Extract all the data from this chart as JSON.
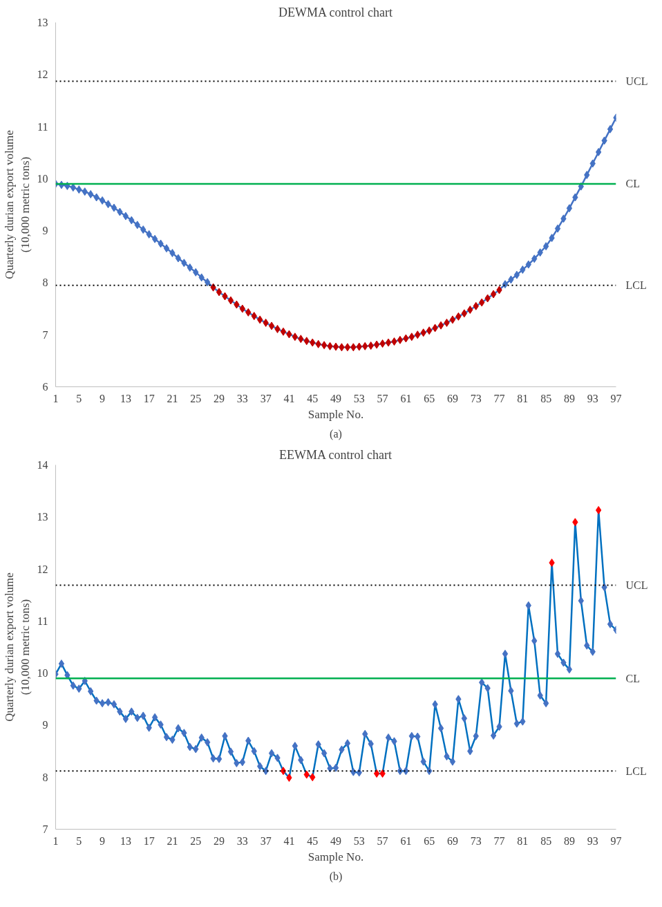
{
  "chart_data": [
    {
      "type": "line",
      "title": "DEWMA control chart",
      "xlabel": "Sample No.",
      "ylabel": "Quarterly durian export volume\n(10,000 metric tons)",
      "x": [
        1,
        2,
        3,
        4,
        5,
        6,
        7,
        8,
        9,
        10,
        11,
        12,
        13,
        14,
        15,
        16,
        17,
        18,
        19,
        20,
        21,
        22,
        23,
        24,
        25,
        26,
        27,
        28,
        29,
        30,
        31,
        32,
        33,
        34,
        35,
        36,
        37,
        38,
        39,
        40,
        41,
        42,
        43,
        44,
        45,
        46,
        47,
        48,
        49,
        50,
        51,
        52,
        53,
        54,
        55,
        56,
        57,
        58,
        59,
        60,
        61,
        62,
        63,
        64,
        65,
        66,
        67,
        68,
        69,
        70,
        71,
        72,
        73,
        74,
        75,
        76,
        77,
        78,
        79,
        80,
        81,
        82,
        83,
        84,
        85,
        86,
        87,
        88,
        89,
        90,
        91,
        92,
        93,
        94,
        95,
        96,
        97
      ],
      "series": [
        {
          "color": "#4472c4",
          "values": [
            9.9,
            9.88,
            9.86,
            9.83,
            9.79,
            9.75,
            9.7,
            9.64,
            9.58,
            9.51,
            9.44,
            9.36,
            9.28,
            9.2,
            9.11,
            9.02,
            8.93,
            8.84,
            8.75,
            8.66,
            8.57,
            8.47,
            8.38,
            8.29,
            8.2,
            8.1,
            8.01,
            7.91,
            7.82,
            7.74,
            7.66,
            7.58,
            7.5,
            7.43,
            7.36,
            7.29,
            7.23,
            7.17,
            7.11,
            7.06,
            7.01,
            6.96,
            6.92,
            6.88,
            6.85,
            6.82,
            6.8,
            6.78,
            6.77,
            6.76,
            6.76,
            6.76,
            6.77,
            6.78,
            6.79,
            6.81,
            6.83,
            6.85,
            6.87,
            6.9,
            6.93,
            6.96,
            7.0,
            7.04,
            7.08,
            7.13,
            7.18,
            7.23,
            7.29,
            7.35,
            7.41,
            7.48,
            7.55,
            7.62,
            7.7,
            7.78,
            7.86,
            7.97,
            8.06,
            8.15,
            8.25,
            8.35,
            8.46,
            8.58,
            8.7,
            8.86,
            9.04,
            9.23,
            9.43,
            9.64,
            9.85,
            10.07,
            10.29,
            10.51,
            10.73,
            10.95,
            11.17
          ],
          "colors": [
            "#4472c4",
            "#4472c4",
            "#4472c4",
            "#4472c4",
            "#4472c4",
            "#4472c4",
            "#4472c4",
            "#4472c4",
            "#4472c4",
            "#4472c4",
            "#4472c4",
            "#4472c4",
            "#4472c4",
            "#4472c4",
            "#4472c4",
            "#4472c4",
            "#4472c4",
            "#4472c4",
            "#4472c4",
            "#4472c4",
            "#4472c4",
            "#4472c4",
            "#4472c4",
            "#4472c4",
            "#4472c4",
            "#4472c4",
            "#4472c4",
            "#c00000",
            "#c00000",
            "#c00000",
            "#c00000",
            "#c00000",
            "#c00000",
            "#c00000",
            "#c00000",
            "#c00000",
            "#c00000",
            "#c00000",
            "#c00000",
            "#c00000",
            "#c00000",
            "#c00000",
            "#c00000",
            "#c00000",
            "#c00000",
            "#c00000",
            "#c00000",
            "#c00000",
            "#c00000",
            "#c00000",
            "#c00000",
            "#c00000",
            "#c00000",
            "#c00000",
            "#c00000",
            "#c00000",
            "#c00000",
            "#c00000",
            "#c00000",
            "#c00000",
            "#c00000",
            "#c00000",
            "#c00000",
            "#c00000",
            "#c00000",
            "#c00000",
            "#c00000",
            "#c00000",
            "#c00000",
            "#c00000",
            "#c00000",
            "#c00000",
            "#c00000",
            "#c00000",
            "#c00000",
            "#c00000",
            "#c00000",
            "#4472c4",
            "#4472c4",
            "#4472c4",
            "#4472c4",
            "#4472c4",
            "#4472c4",
            "#4472c4",
            "#4472c4",
            "#4472c4",
            "#4472c4",
            "#4472c4",
            "#4472c4",
            "#4472c4",
            "#4472c4",
            "#4472c4",
            "#4472c4",
            "#4472c4",
            "#4472c4",
            "#4472c4",
            "#4472c4"
          ]
        }
      ],
      "xlim": [
        1,
        97
      ],
      "xticks": [
        1,
        5,
        9,
        13,
        17,
        21,
        25,
        29,
        33,
        37,
        41,
        45,
        49,
        53,
        57,
        61,
        65,
        69,
        73,
        77,
        81,
        85,
        89,
        93,
        97
      ],
      "ylim": [
        6,
        13
      ],
      "yticks": [
        6,
        7,
        8,
        9,
        10,
        11,
        12,
        13
      ],
      "ref_lines": [
        {
          "axis": "y",
          "value": 11.87,
          "label": "UCL",
          "color": "#000000",
          "line_style": "dotted"
        },
        {
          "axis": "y",
          "value": 9.9,
          "label": "CL",
          "color": "#00b050",
          "line_style": "solid"
        },
        {
          "axis": "y",
          "value": 7.95,
          "label": "LCL",
          "color": "#000000",
          "line_style": "dotted"
        }
      ],
      "marker": "diamond",
      "grid": false,
      "annotations": [
        "(a)"
      ]
    },
    {
      "type": "line",
      "title": "EEWMA control chart",
      "xlabel": "Sample No.",
      "ylabel": "Quarterly durian export volume\n(10,000 metric tons)",
      "x": [
        1,
        2,
        3,
        4,
        5,
        6,
        7,
        8,
        9,
        10,
        11,
        12,
        13,
        14,
        15,
        16,
        17,
        18,
        19,
        20,
        21,
        22,
        23,
        24,
        25,
        26,
        27,
        28,
        29,
        30,
        31,
        32,
        33,
        34,
        35,
        36,
        37,
        38,
        39,
        40,
        41,
        42,
        43,
        44,
        45,
        46,
        47,
        48,
        49,
        50,
        51,
        52,
        53,
        54,
        55,
        56,
        57,
        58,
        59,
        60,
        61,
        62,
        63,
        64,
        65,
        66,
        67,
        68,
        69,
        70,
        71,
        72,
        73,
        74,
        75,
        76,
        77,
        78,
        79,
        80,
        81,
        82,
        83,
        84,
        85,
        86,
        87,
        88,
        89,
        90,
        91,
        92,
        93,
        94,
        95,
        96,
        97
      ],
      "series": [
        {
          "color": "#0070c0",
          "values": [
            9.98,
            10.18,
            9.96,
            9.76,
            9.7,
            9.85,
            9.65,
            9.47,
            9.42,
            9.44,
            9.4,
            9.26,
            9.12,
            9.26,
            9.14,
            9.18,
            8.95,
            9.15,
            9.01,
            8.77,
            8.72,
            8.94,
            8.85,
            8.58,
            8.54,
            8.76,
            8.67,
            8.36,
            8.35,
            8.79,
            8.49,
            8.27,
            8.29,
            8.7,
            8.5,
            8.21,
            8.12,
            8.46,
            8.37,
            8.12,
            7.99,
            8.6,
            8.33,
            8.05,
            8.0,
            8.63,
            8.46,
            8.17,
            8.18,
            8.53,
            8.65,
            8.1,
            8.09,
            8.83,
            8.64,
            8.07,
            8.07,
            8.76,
            8.69,
            8.12,
            8.12,
            8.79,
            8.78,
            8.3,
            8.12,
            9.4,
            8.94,
            8.4,
            8.3,
            9.5,
            9.13,
            8.5,
            8.79,
            9.82,
            9.71,
            8.8,
            8.97,
            10.37,
            9.66,
            9.03,
            9.07,
            11.3,
            10.62,
            9.57,
            9.42,
            12.12,
            10.37,
            10.2,
            10.07,
            12.9,
            11.39,
            10.53,
            10.41,
            13.13,
            11.65,
            10.94,
            10.83
          ],
          "colors": [
            "#4472c4",
            "#4472c4",
            "#4472c4",
            "#4472c4",
            "#4472c4",
            "#4472c4",
            "#4472c4",
            "#4472c4",
            "#4472c4",
            "#4472c4",
            "#4472c4",
            "#4472c4",
            "#4472c4",
            "#4472c4",
            "#4472c4",
            "#4472c4",
            "#4472c4",
            "#4472c4",
            "#4472c4",
            "#4472c4",
            "#4472c4",
            "#4472c4",
            "#4472c4",
            "#4472c4",
            "#4472c4",
            "#4472c4",
            "#4472c4",
            "#4472c4",
            "#4472c4",
            "#4472c4",
            "#4472c4",
            "#4472c4",
            "#4472c4",
            "#4472c4",
            "#4472c4",
            "#4472c4",
            "#4472c4",
            "#4472c4",
            "#4472c4",
            "#ff0000",
            "#ff0000",
            "#4472c4",
            "#4472c4",
            "#ff0000",
            "#ff0000",
            "#4472c4",
            "#4472c4",
            "#4472c4",
            "#4472c4",
            "#4472c4",
            "#4472c4",
            "#4472c4",
            "#4472c4",
            "#4472c4",
            "#4472c4",
            "#ff0000",
            "#ff0000",
            "#4472c4",
            "#4472c4",
            "#4472c4",
            "#4472c4",
            "#4472c4",
            "#4472c4",
            "#4472c4",
            "#4472c4",
            "#4472c4",
            "#4472c4",
            "#4472c4",
            "#4472c4",
            "#4472c4",
            "#4472c4",
            "#4472c4",
            "#4472c4",
            "#4472c4",
            "#4472c4",
            "#4472c4",
            "#4472c4",
            "#4472c4",
            "#4472c4",
            "#4472c4",
            "#4472c4",
            "#4472c4",
            "#4472c4",
            "#4472c4",
            "#4472c4",
            "#ff0000",
            "#4472c4",
            "#4472c4",
            "#4472c4",
            "#ff0000",
            "#4472c4",
            "#4472c4",
            "#4472c4",
            "#ff0000",
            "#4472c4",
            "#4472c4",
            "#4472c4"
          ]
        }
      ],
      "xlim": [
        1,
        97
      ],
      "xticks": [
        1,
        5,
        9,
        13,
        17,
        21,
        25,
        29,
        33,
        37,
        41,
        45,
        49,
        53,
        57,
        61,
        65,
        69,
        73,
        77,
        81,
        85,
        89,
        93,
        97
      ],
      "ylim": [
        7,
        14
      ],
      "yticks": [
        7,
        8,
        9,
        10,
        11,
        12,
        13,
        14
      ],
      "ref_lines": [
        {
          "axis": "y",
          "value": 11.69,
          "label": "UCL",
          "color": "#000000",
          "line_style": "dotted"
        },
        {
          "axis": "y",
          "value": 9.9,
          "label": "CL",
          "color": "#00b050",
          "line_style": "solid"
        },
        {
          "axis": "y",
          "value": 8.12,
          "label": "LCL",
          "color": "#000000",
          "line_style": "dotted"
        }
      ],
      "marker": "diamond",
      "grid": false,
      "annotations": [
        "(b)"
      ]
    }
  ]
}
